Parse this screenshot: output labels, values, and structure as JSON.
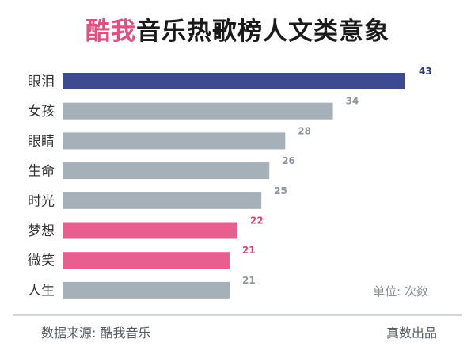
{
  "title": {
    "brand": "酷我",
    "rest": "音乐热歌榜人文类意象"
  },
  "unit_note": "单位: 次数",
  "footer": {
    "source": "数据来源: 酷我音乐",
    "credit": "真数出品"
  },
  "colors": {
    "top": "#3d4a8f",
    "default": "#a5b0b9",
    "highlight": "#e85f8f",
    "label_default": "#8b96a0",
    "label_highlight": "#d9457a",
    "label_top": "#2e3a7a"
  },
  "chart_data": {
    "type": "bar",
    "orientation": "horizontal",
    "title": "酷我音乐热歌榜人文类意象",
    "categories": [
      "眼泪",
      "女孩",
      "眼睛",
      "生命",
      "时光",
      "梦想",
      "微笑",
      "人生"
    ],
    "values": [
      43,
      34,
      28,
      26,
      25,
      22,
      21,
      21
    ],
    "bar_color_groups": [
      "top",
      "default",
      "default",
      "default",
      "default",
      "highlight",
      "highlight",
      "default"
    ],
    "unit": "次数",
    "xlim": [
      0,
      43
    ],
    "grid": false,
    "legend": "none"
  }
}
